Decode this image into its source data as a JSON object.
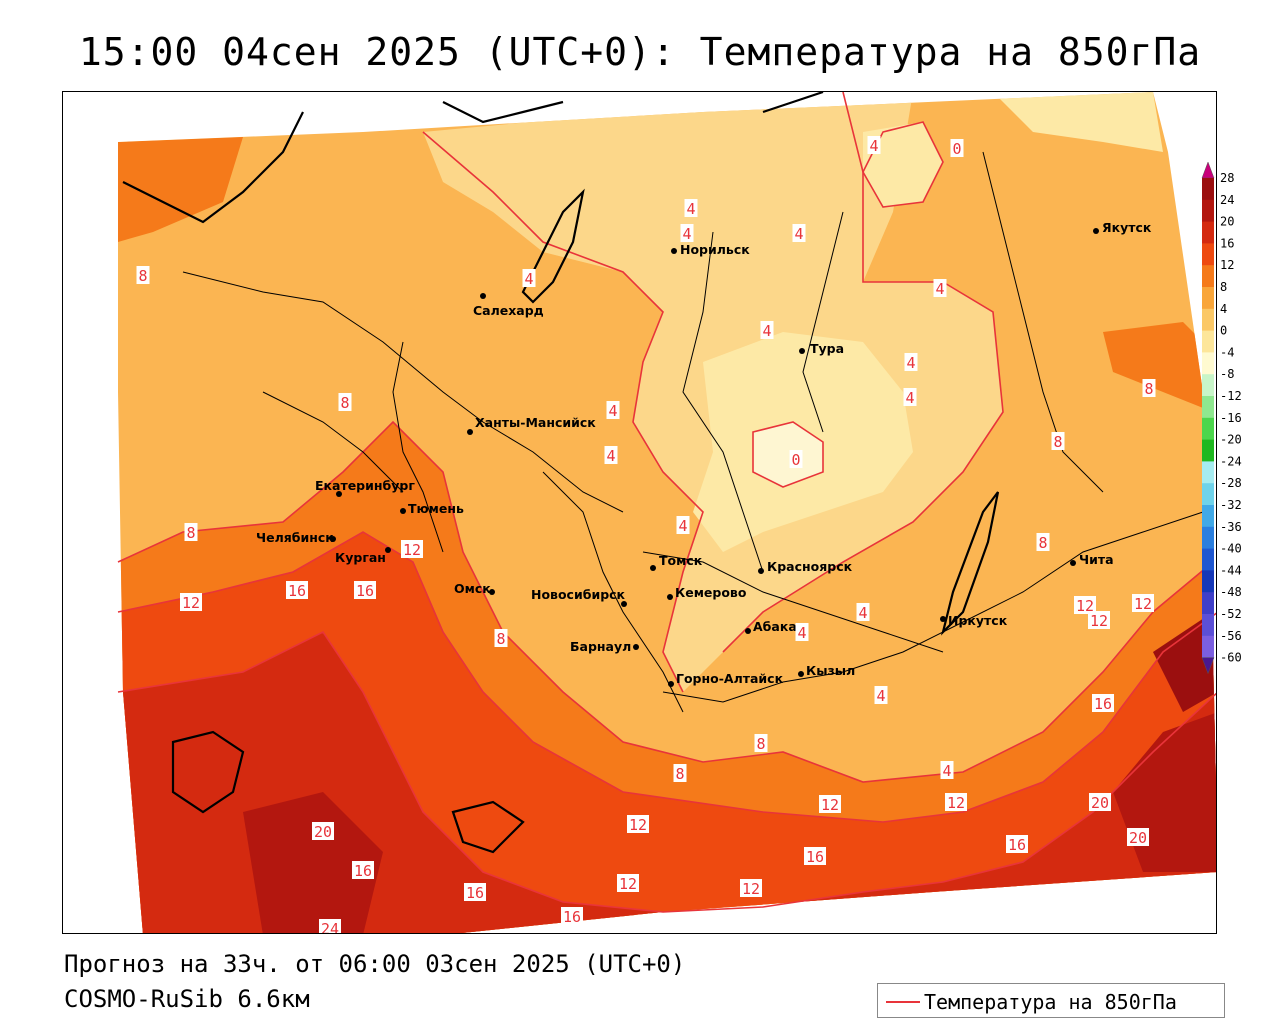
{
  "title": "15:00 04сен 2025 (UTC+0): Температура на 850гПа",
  "forecast_line": "Прогноз на 33ч. от 06:00 03сен 2025 (UTC+0)",
  "model_line": "COSMO-RuSib 6.6км",
  "legend": {
    "label": "Температура на 850гПа",
    "line_color": "#e8343a"
  },
  "colorbar": {
    "ticks": [
      "28",
      "24",
      "20",
      "16",
      "12",
      "8",
      "4",
      "0",
      "-4",
      "-8",
      "-12",
      "-16",
      "-20",
      "-24",
      "-28",
      "-32",
      "-36",
      "-40",
      "-44",
      "-48",
      "-52",
      "-56",
      "-60"
    ],
    "colors": [
      "#c8007a",
      "#9b0f0f",
      "#b3170f",
      "#d42a10",
      "#ee4a10",
      "#f57a1a",
      "#f9a63a",
      "#fbc866",
      "#fde69a",
      "#fffad0",
      "#c8f5c8",
      "#8fe88f",
      "#4cd64c",
      "#1fb81f",
      "#a6ecf0",
      "#6fd3ea",
      "#41a9e6",
      "#2b7fde",
      "#1f57d0",
      "#1638b8",
      "#3f3fc8",
      "#5b4fd6",
      "#7b5fe0",
      "#6a2fb0",
      "#4a1890"
    ]
  },
  "cities": [
    {
      "name": "Норильск"
    },
    {
      "name": "Салехард"
    },
    {
      "name": "Якутск"
    },
    {
      "name": "Тура"
    },
    {
      "name": "Ханты-Мансийск"
    },
    {
      "name": "Екатеринбург"
    },
    {
      "name": "Тюмень"
    },
    {
      "name": "Челябинск"
    },
    {
      "name": "Курган"
    },
    {
      "name": "Омск"
    },
    {
      "name": "Новосибирск"
    },
    {
      "name": "Томск"
    },
    {
      "name": "Кемерово"
    },
    {
      "name": "Красноярск"
    },
    {
      "name": "Барнаул"
    },
    {
      "name": "Абакан"
    },
    {
      "name": "Горно-Алтайск"
    },
    {
      "name": "Кызыл"
    },
    {
      "name": "Иркутск"
    },
    {
      "name": "Чита"
    }
  ],
  "isotherm_labels": [
    "8",
    "8",
    "8",
    "4",
    "4",
    "4",
    "4",
    "4",
    "4",
    "4",
    "4",
    "4",
    "4",
    "0",
    "0",
    "4",
    "4",
    "8",
    "8",
    "8",
    "12",
    "16",
    "16",
    "12",
    "8",
    "12",
    "12",
    "12",
    "16",
    "12",
    "12",
    "20",
    "16",
    "16",
    "20",
    "20",
    "16",
    "16",
    "4",
    "4",
    "4",
    "4",
    "8",
    "8",
    "12",
    "12",
    "12",
    "16",
    "24"
  ]
}
